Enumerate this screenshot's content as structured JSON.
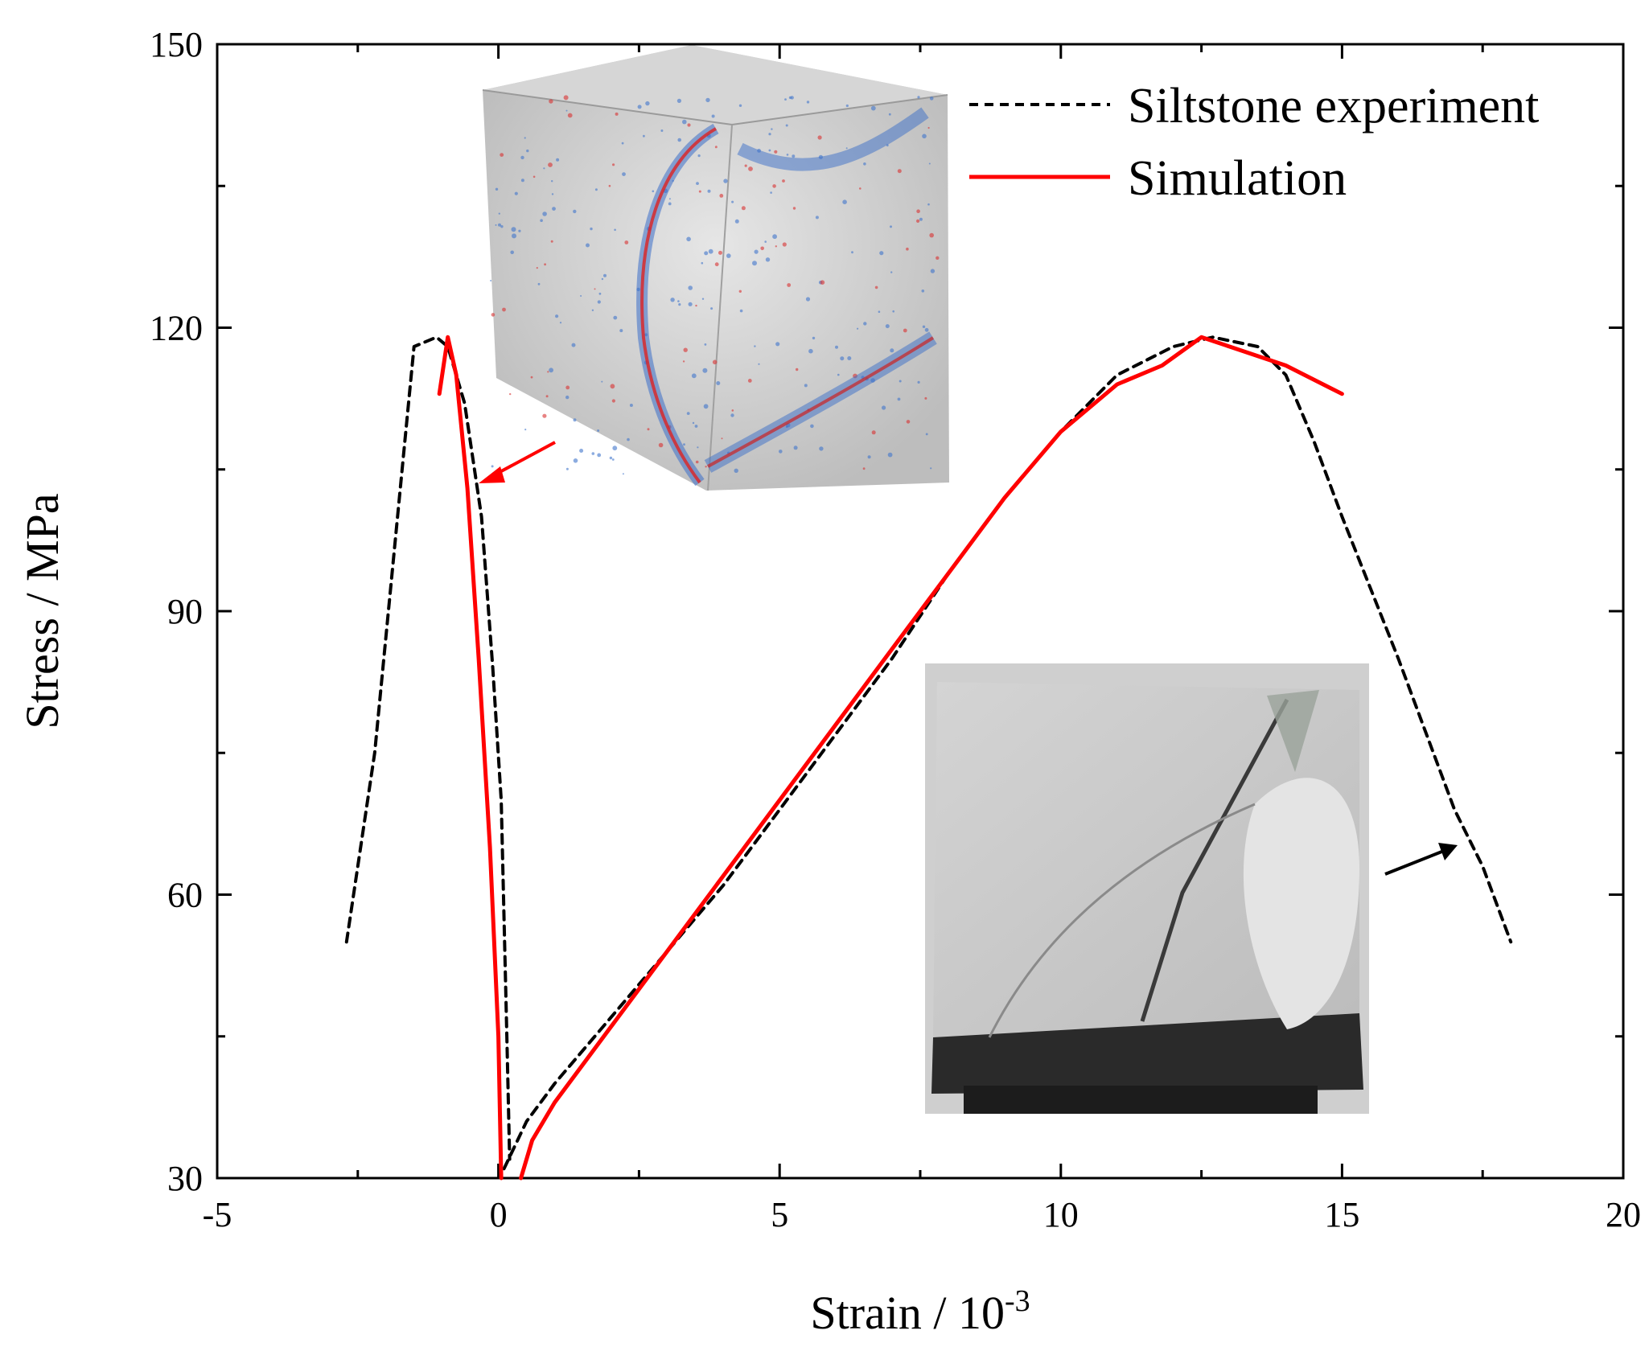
{
  "chart_data": {
    "type": "line",
    "title": "",
    "xlabel": "Strain / 10",
    "xlabel_exponent": "-3",
    "ylabel": "Stress / MPa",
    "xlim": [
      -5,
      20
    ],
    "ylim": [
      30,
      150
    ],
    "xticks": [
      -5,
      0,
      5,
      10,
      15,
      20
    ],
    "yticks": [
      30,
      60,
      90,
      120,
      150
    ],
    "legend_position": "top-right",
    "series": [
      {
        "name": "Siltstone experiment",
        "color": "#000000",
        "style": "dashed",
        "segments": [
          [
            [
              -2.7,
              55
            ],
            [
              -2.2,
              75
            ],
            [
              -1.5,
              118
            ],
            [
              -1.1,
              119
            ],
            [
              -0.9,
              118
            ],
            [
              -0.6,
              112
            ],
            [
              -0.3,
              100
            ],
            [
              -0.1,
              84
            ],
            [
              0.05,
              70
            ],
            [
              0.15,
              45
            ],
            [
              0.2,
              32
            ]
          ],
          [
            [
              0.1,
              31
            ],
            [
              0.5,
              36
            ],
            [
              1.0,
              40
            ],
            [
              2.0,
              47
            ],
            [
              3.0,
              54
            ],
            [
              4.0,
              61
            ],
            [
              5.0,
              69
            ],
            [
              6.0,
              77
            ],
            [
              7.0,
              85
            ],
            [
              8.0,
              94
            ],
            [
              9.0,
              102
            ],
            [
              10.0,
              109
            ],
            [
              11.0,
              115
            ],
            [
              12.0,
              118
            ],
            [
              12.7,
              119
            ],
            [
              13.5,
              118
            ],
            [
              14.0,
              115
            ],
            [
              14.5,
              108
            ],
            [
              15.0,
              100
            ],
            [
              16.0,
              85
            ],
            [
              17.0,
              69
            ],
            [
              17.5,
              63
            ],
            [
              18.0,
              55
            ]
          ]
        ]
      },
      {
        "name": "Simulation",
        "color": "#ff0000",
        "style": "solid",
        "segments": [
          [
            [
              -1.05,
              113
            ],
            [
              -0.9,
              119
            ],
            [
              -0.75,
              115
            ],
            [
              -0.55,
              103
            ],
            [
              -0.35,
              85
            ],
            [
              -0.15,
              65
            ],
            [
              0.0,
              45
            ],
            [
              0.05,
              30
            ]
          ],
          [
            [
              0.4,
              30
            ],
            [
              0.6,
              34
            ],
            [
              1.0,
              38
            ],
            [
              2.0,
              46
            ],
            [
              3.0,
              54
            ],
            [
              4.0,
              62
            ],
            [
              5.0,
              70
            ],
            [
              6.0,
              78
            ],
            [
              7.0,
              86
            ],
            [
              8.0,
              94
            ],
            [
              9.0,
              102
            ],
            [
              10.0,
              109
            ],
            [
              11.0,
              114
            ],
            [
              11.8,
              116
            ],
            [
              12.5,
              119
            ],
            [
              13.0,
              118
            ],
            [
              14.0,
              116
            ],
            [
              15.0,
              113
            ]
          ]
        ]
      }
    ]
  },
  "insets": {
    "top": "simulated cubic specimen with fracture particles",
    "bottom": "photograph of fractured siltstone specimen"
  }
}
